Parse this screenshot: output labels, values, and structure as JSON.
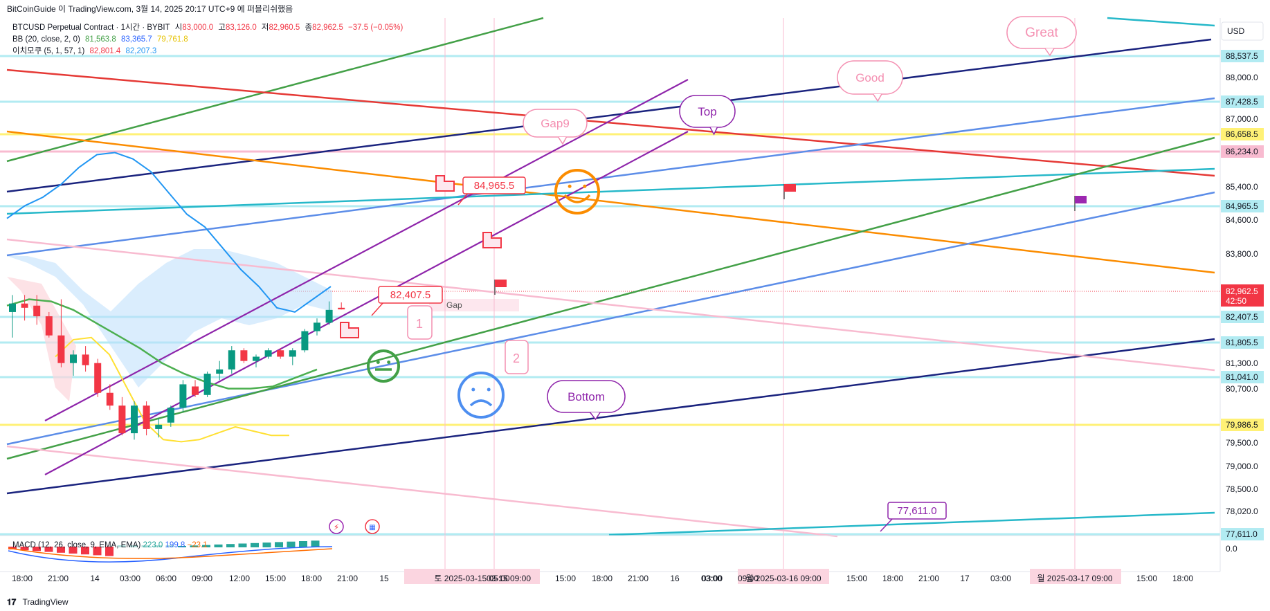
{
  "header": {
    "publisher": "BitCoinGuide 이 TradingView.com, 3월 14, 2025 20:17 UTC+9 에 퍼블리쉬했음"
  },
  "legend": {
    "symbol": "BTCUSD Perpetual Contract · 1시간 · BYBIT",
    "o_label": "시",
    "o": "83,000.0",
    "h_label": "고",
    "h": "83,126.0",
    "l_label": "저",
    "l": "82,960.5",
    "c_label": "종",
    "c": "82,962.5",
    "chg": "−37.5 (−0.05%)",
    "bb_name": "BB (20, close, 2, 0)",
    "bb_basis": "81,563.8",
    "bb_upper": "83,365.7",
    "bb_lower": "79,761.8",
    "ich_name": "이치모쿠 (5, 1, 57, 1)",
    "ich_a": "82,801.4",
    "ich_b": "82,207.3"
  },
  "macd": {
    "name": "MACD (12, 26, close, 9, EMA, EMA)",
    "v0": "223.0",
    "v1": "199.8",
    "v2": "−23.1"
  },
  "price_axis": {
    "currency": "USD",
    "ticks": [
      "88,000.0",
      "87,000.0",
      "85,400.0",
      "84,600.0",
      "83,800.0",
      "81,300.0",
      "80,700.0",
      "79,500.0",
      "79,000.0",
      "78,500.0",
      "78,020.0",
      "0.0"
    ],
    "current": "82,962.5",
    "countdown": "42:50",
    "level_labels": [
      {
        "text": "88,537.5",
        "color": "#b2ebf2"
      },
      {
        "text": "87,428.5",
        "color": "#b2ebf2"
      },
      {
        "text": "86,658.5",
        "color": "#fff176"
      },
      {
        "text": "86,234.0",
        "color": "#f8bbd0"
      },
      {
        "text": "84,965.5",
        "color": "#b2ebf2"
      },
      {
        "text": "82,407.5",
        "color": "#b2ebf2"
      },
      {
        "text": "81,805.5",
        "color": "#b2ebf2"
      },
      {
        "text": "81,041.0",
        "color": "#b2ebf2"
      },
      {
        "text": "79,986.5",
        "color": "#fff176"
      },
      {
        "text": "77,611.0",
        "color": "#b2ebf2"
      }
    ]
  },
  "time_axis": {
    "ticks": [
      "18:00",
      "21:00",
      "14",
      "03:00",
      "06:00",
      "09:00",
      "12:00",
      "15:00",
      "18:00",
      "21:00",
      "15",
      "03:00",
      "09:00",
      "15:00",
      "18:00",
      "21:00",
      "16",
      "03:00",
      "15:00",
      "18:00",
      "21:00",
      "17",
      "03:00",
      "15:00",
      "18:00"
    ],
    "highlights": [
      "토 2025-03-15  05:00",
      "03-15  09:00",
      "월 2025-03-16  09:00",
      "월 2025-03-17  09:00"
    ]
  },
  "annotations": {
    "gap9": "Gap9",
    "top": "Top",
    "good": "Good",
    "great": "Great",
    "bottom": "Bottom",
    "gap": "Gap",
    "num1": "1",
    "num2": "2",
    "callout_84965": "84,965.5",
    "callout_82407": "82,407.5",
    "callout_77611": "77,611.0"
  },
  "colors": {
    "up": "#089981",
    "down": "#f23645",
    "ichimoku_cloud": "#bbdefb"
  },
  "footer": {
    "brand": "TradingView"
  },
  "chart_data": {
    "type": "candlestick",
    "title": "BTCUSD Perpetual Contract · 1시간 · BYBIT",
    "xlabel": "",
    "ylabel": "",
    "ylim": [
      77300,
      89300
    ],
    "candles": [
      {
        "o": 82900,
        "h": 83300,
        "l": 82300,
        "c": 83100
      },
      {
        "o": 83100,
        "h": 83300,
        "l": 82700,
        "c": 83000
      },
      {
        "o": 83050,
        "h": 83300,
        "l": 82600,
        "c": 82800
      },
      {
        "o": 82800,
        "h": 82900,
        "l": 82300,
        "c": 82350
      },
      {
        "o": 82350,
        "h": 83200,
        "l": 81600,
        "c": 81700
      },
      {
        "o": 81700,
        "h": 82000,
        "l": 81400,
        "c": 81900
      },
      {
        "o": 81900,
        "h": 82100,
        "l": 81500,
        "c": 81650
      },
      {
        "o": 81700,
        "h": 81800,
        "l": 80900,
        "c": 81000
      },
      {
        "o": 81000,
        "h": 81200,
        "l": 80600,
        "c": 80700
      },
      {
        "o": 80700,
        "h": 80900,
        "l": 80000,
        "c": 80050
      },
      {
        "o": 80050,
        "h": 80800,
        "l": 79900,
        "c": 80700
      },
      {
        "o": 80700,
        "h": 80800,
        "l": 80000,
        "c": 80150
      },
      {
        "o": 80150,
        "h": 80400,
        "l": 79950,
        "c": 80250
      },
      {
        "o": 80300,
        "h": 80700,
        "l": 80200,
        "c": 80650
      },
      {
        "o": 80650,
        "h": 81300,
        "l": 80550,
        "c": 81200
      },
      {
        "o": 81150,
        "h": 81300,
        "l": 80900,
        "c": 80950
      },
      {
        "o": 80950,
        "h": 81500,
        "l": 80900,
        "c": 81450
      },
      {
        "o": 81450,
        "h": 81750,
        "l": 81300,
        "c": 81550
      },
      {
        "o": 81550,
        "h": 82100,
        "l": 81450,
        "c": 82000
      },
      {
        "o": 82000,
        "h": 82050,
        "l": 81700,
        "c": 81750
      },
      {
        "o": 81750,
        "h": 81900,
        "l": 81600,
        "c": 81850
      },
      {
        "o": 81850,
        "h": 82050,
        "l": 81800,
        "c": 82000
      },
      {
        "o": 82000,
        "h": 82050,
        "l": 81800,
        "c": 81850
      },
      {
        "o": 81850,
        "h": 82050,
        "l": 81650,
        "c": 82000
      },
      {
        "o": 82000,
        "h": 82500,
        "l": 81950,
        "c": 82450
      },
      {
        "o": 82450,
        "h": 82750,
        "l": 82350,
        "c": 82650
      },
      {
        "o": 82650,
        "h": 83150,
        "l": 82600,
        "c": 82950
      },
      {
        "o": 83000,
        "h": 83126,
        "l": 82960,
        "c": 82962.5
      }
    ],
    "bb_upper": [
      85100,
      85400,
      85600,
      85900,
      86300,
      86600,
      86650,
      86500,
      86200,
      85700,
      85200,
      84900,
      84400,
      83900,
      83500,
      83000,
      82900,
      83200,
      83500
    ],
    "bb_basis": [
      83050,
      83200,
      83150,
      82950,
      82650,
      82350,
      82050,
      81700,
      81450,
      81250,
      81100,
      81100,
      81150,
      81350,
      81550
    ],
    "bb_lower": [
      81850,
      82250,
      82300,
      81900,
      81100,
      80300,
      79900,
      79850,
      79900,
      80050,
      80200,
      80100,
      80000,
      80000
    ]
  }
}
